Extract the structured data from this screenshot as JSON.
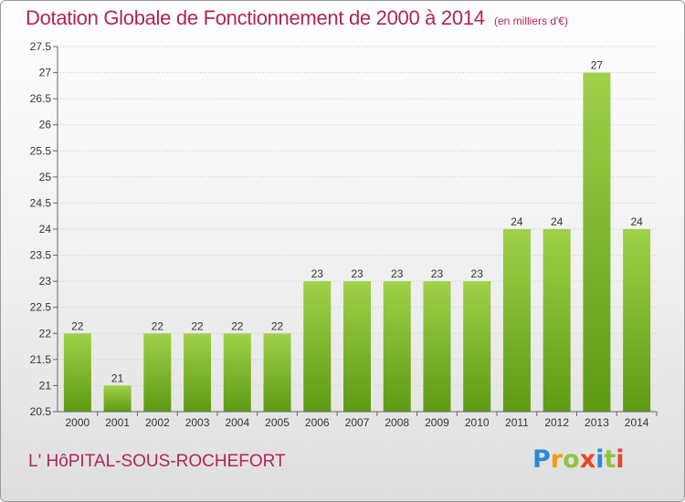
{
  "title": "Dotation Globale de Fonctionnement de 2000 à 2014",
  "subtitle": "(en milliers d'€)",
  "town": "L' HôPITAL-SOUS-ROCHEFORT",
  "logo": {
    "letters": [
      "P",
      "r",
      "o",
      "x",
      "i",
      "t",
      "i"
    ],
    "colors": [
      "#2a8ad4",
      "#f39c12",
      "#8cc63f",
      "#e8462a",
      "#2a8ad4",
      "#8cc63f",
      "#e8462a"
    ]
  },
  "colors": {
    "title": "#b0245a",
    "bar_light": "#9fd14a",
    "bar_dark": "#5d9a12",
    "grid": "#c8c8c8"
  },
  "chart_data": {
    "type": "bar",
    "title": "Dotation Globale de Fonctionnement de 2000 à 2014",
    "subtitle": "(en milliers d'€)",
    "categories": [
      "2000",
      "2001",
      "2002",
      "2003",
      "2004",
      "2005",
      "2006",
      "2007",
      "2008",
      "2009",
      "2010",
      "2011",
      "2012",
      "2013",
      "2014"
    ],
    "values": [
      22,
      21,
      22,
      22,
      22,
      22,
      23,
      23,
      23,
      23,
      23,
      24,
      24,
      27,
      24
    ],
    "ylim": [
      20.5,
      27.5
    ],
    "yticks": [
      "20.5",
      "21",
      "21.5",
      "22",
      "22.5",
      "23",
      "23.5",
      "24",
      "24.5",
      "25",
      "25.5",
      "26",
      "26.5",
      "27",
      "27.5"
    ],
    "grid": true,
    "xlabel": "",
    "ylabel": ""
  }
}
